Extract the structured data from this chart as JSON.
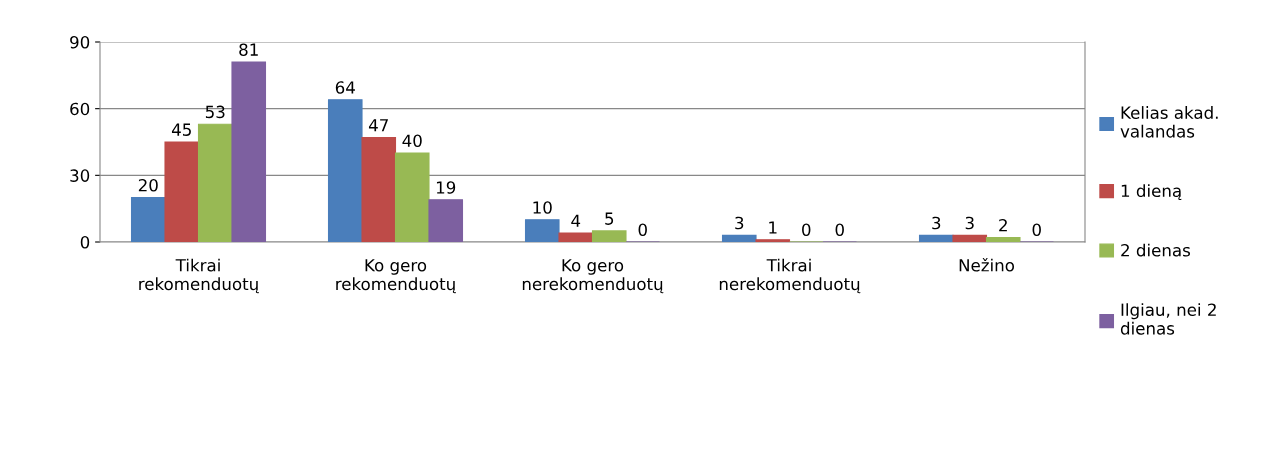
{
  "chart_data": {
    "type": "bar",
    "categories": [
      "Tikrai\nrekomenduotų",
      "Ko gero\nrekomenduotų",
      "Ko gero\nnerekomenduotų",
      "Tikrai\nnerekomenduotų",
      "Nežino"
    ],
    "series": [
      {
        "name": "Kelias akad.\nvalandas",
        "color": "#4a7ebb",
        "values": [
          20,
          64,
          10,
          3,
          3
        ]
      },
      {
        "name": "1 dieną",
        "color": "#be4b48",
        "values": [
          45,
          47,
          4,
          1,
          3
        ]
      },
      {
        "name": "2 dienas",
        "color": "#98b954",
        "values": [
          53,
          40,
          5,
          0,
          2
        ]
      },
      {
        "name": "Ilgiau, nei 2\ndienas",
        "color": "#7d60a0",
        "values": [
          81,
          19,
          0,
          0,
          0
        ]
      }
    ],
    "ylim": [
      0,
      90
    ],
    "yticks": [
      0,
      30,
      60,
      90
    ],
    "grid": "y",
    "legend": "right",
    "data_labels": true
  }
}
